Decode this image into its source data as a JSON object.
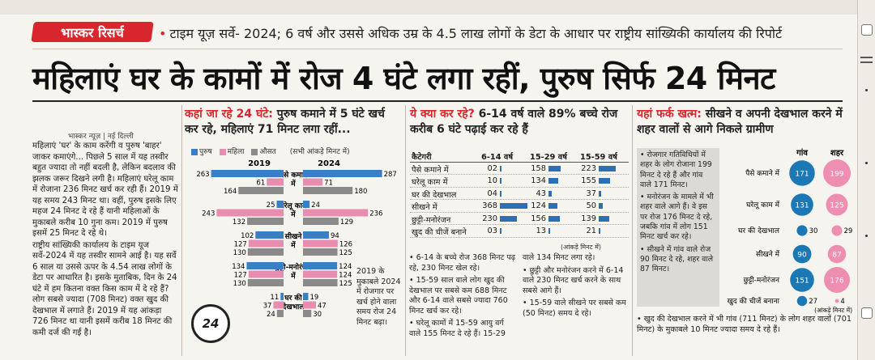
{
  "top_hint": "",
  "brand": "भास्कर रिसर्च",
  "subhead": "टाइम यूज़ सर्वे- 2024; 6 वर्ष और उससे अधिक उम्र के 4.5 लाख लोगों के डेटा के आधार पर राष्ट्रीय सांख्यिकी कार्यालय की रिपोर्ट",
  "headline": "महिलाएं घर के कामों में रोज 4 घंटे लगा रहीं, पुरुष सिर्फ 24 मिनट",
  "byline": "भास्कर न्यूज़ | नई दिल्ली",
  "left_paragraphs": [
    "महिलाएं 'घर' के काम करेंगी व पुरुष 'बाहर' जाकर कमाएंगे... पिछले 5 साल में यह तस्वीर बहुत ज्यादा तो नहीं बदली है, लेकिन बदलाव की झलक जरूर दिखने लगी है। महिलाएं घरेलू काम में रोजाना 236 मिनट खर्च कर रही हैं। 2019 में यह समय 243 मिनट था। वहीं, पुरुष इसके लिए महज 24 मिनट दे रहे हैं यानी महिलाओं के मुकाबले करीब 10 गुना कम। 2019 में पुरुष इसमें 25 मिनट दे रहे थे।",
    "राष्ट्रीय सांख्यिकी कार्यालय के टाइम यूज सर्वे-2024 में यह तस्वीर सामने आई है। यह सर्वे 6 साल या उससे ऊपर के 4.54 लाख लोगों के डेटा पर आधारित है। इसके मुताबिक, दिन के 24 घंटे में हम कितना वक्त किस काम में दे रहे हैं? लोग सबसे ज्यादा (708 मिनट) वक्त खुद की देखभाल में लगाते हैं। 2019 में यह आंकड़ा 726 मिनट था यानी इसमें करीब 18 मिनट की कमी दर्ज की गई है।"
  ],
  "section1": {
    "lead": "कहां जा रहे 24 घंटे:",
    "text": " पुरुष कमाने में 5 घंटे खर्च कर रहे, महिलाएं 71 मिनट लगा रहीं..."
  },
  "legend1": {
    "items": [
      {
        "label": "पुरुष",
        "color": "#3a7fc4"
      },
      {
        "label": "महिला",
        "color": "#e98db0"
      },
      {
        "label": "औसत",
        "color": "#8a8a8a"
      }
    ],
    "note": "(सभी आंकड़े मिनट में)"
  },
  "clock_label": "24",
  "note1": "2019 के मुकाबले 2024 में रोजगार पर खर्च होने वाला समय रोज 24 मिनट बढ़ा।",
  "chart_data": [
    {
      "type": "bar",
      "title": "कहां जा रहे 24 घंटे",
      "x_groups": [
        "2019",
        "2024"
      ],
      "categories": [
        "पैसे कमाने में",
        "घरेलू काम में",
        "सीखने में",
        "छुट्टी-मनोरंजन में",
        "घर की देखभाल"
      ],
      "series": [
        {
          "name": "पुरुष",
          "values_2019": [
            263,
            25,
            102,
            134,
            11
          ],
          "values_2024": [
            287,
            24,
            94,
            124,
            19
          ]
        },
        {
          "name": "महिला",
          "values_2019": [
            61,
            243,
            127,
            127,
            37
          ],
          "values_2024": [
            71,
            236,
            126,
            124,
            47
          ]
        },
        {
          "name": "औसत",
          "values_2019": [
            164,
            132,
            130,
            130,
            24
          ],
          "values_2024": [
            180,
            129,
            125,
            125,
            30
          ]
        }
      ],
      "unit": "(सभी आंकड़े मिनट में)",
      "colors": {
        "male": "#3a7fc4",
        "female": "#e98db0",
        "avg": "#8a8a8a"
      }
    },
    {
      "type": "table",
      "title": "ये क्या कर रहे? 6-14 वर्ष वाले 89% बच्चे रोज करीब 6 घंटे पढ़ाई कर रहे हैं",
      "columns": [
        "कैटेगरी",
        "6-14 वर्ष",
        "15-29 वर्ष",
        "15-59 वर्ष"
      ],
      "rows": [
        {
          "category": "पैसे कमाने में",
          "values": [
            2,
            158,
            223
          ],
          "labels": [
            "02",
            "158",
            "223"
          ]
        },
        {
          "category": "घरेलू काम में",
          "values": [
            10,
            134,
            155
          ],
          "labels": [
            "10",
            "134",
            "155"
          ]
        },
        {
          "category": "घर की देखभाल",
          "values": [
            4,
            43,
            37
          ],
          "labels": [
            "04",
            "43",
            "37"
          ]
        },
        {
          "category": "सीखने में",
          "values": [
            368,
            124,
            50
          ],
          "labels": [
            "368",
            "124",
            "50"
          ]
        },
        {
          "category": "छुट्टी-मनोरंजन",
          "values": [
            230,
            156,
            139
          ],
          "labels": [
            "230",
            "156",
            "139"
          ]
        },
        {
          "category": "खुद की चीजें बनाने",
          "values": [
            3,
            13,
            21
          ],
          "labels": [
            "03",
            "13",
            "21"
          ]
        }
      ],
      "unit": "(आंकड़े मिनट में)"
    },
    {
      "type": "bar",
      "title": "यहां फर्क खत्म: सीखने व अपनी देखभाल करने में शहर वालों से आगे निकले ग्रामीण",
      "columns": [
        "गांव",
        "शहर"
      ],
      "categories": [
        "पैसे कमाने में",
        "घरेलू काम में",
        "घर की देखभाल",
        "सीखने में",
        "छुट्टी-मनोरंजन",
        "खुद की चीजें बनाना"
      ],
      "series": [
        {
          "name": "गांव",
          "values": [
            171,
            131,
            30,
            90,
            151,
            27
          ]
        },
        {
          "name": "शहर",
          "values": [
            199,
            125,
            29,
            87,
            176,
            4
          ]
        }
      ],
      "unit": "(आंकड़े मिनट में)",
      "colors": {
        "village": "#1b78b5",
        "city": "#ee8fb2"
      }
    }
  ],
  "section2": {
    "lead": "ये क्या कर रहे?",
    "text": " 6-14 वर्ष वाले 89% बच्चे रोज करीब 6 घंटे पढ़ाई कर रहे हैं"
  },
  "bullets2": [
    "6-14 के बच्चे रोज 368 मिनट पढ़ रहे, 230 मिनट खेल रहे।",
    "15-59 साल वाले लोग खुद की देखभाल पर सबसे कम 688 मिनट और 6-14 वाले सबसे ज्यादा 760 मिनट खर्च कर रहे।",
    "घरेलू कामों में 15-59 आयु वर्ग वाले 155 मिनट दे रहे हैं। 15-29 वाले 134 मिनट लगा रहे।",
    "छुट्टी और मनोरंजन करने में 6-14 वाले 230 मिनट खर्च करने के साथ सबसे आगे हैं।",
    "15-59 वाले सीखने पर सबसे कम (50 मिनट) समय दे रहे।"
  ],
  "section3": {
    "lead": "यहां फर्क खत्म:",
    "text": " सीखने व अपनी देखभाल करने में शहर वालों से आगे निकले ग्रामीण"
  },
  "rbullets": [
    "रोजगार गतिविधियों में शहर के लोग रोजाना 199 मिनट दे रहे हैं और गांव वाले 171 मिनट।",
    "मनोरंजन के मामले में भी शहर वाले आगे हैं। वे इस पर रोज 176 मिनट दे रहे, जबकि गांव में लोग 151 मिनट खर्च कर रहे।",
    "सीखने में गांव वाले रोज 90 मिनट दे रहे, शहर वाले 87 मिनट।"
  ],
  "rfoot": "खुद की देखभाल करने में भी गांव (711 मिनट) के लोग शहर वालों (701 मिनट) के मुकाबले 10 मिनट ज्यादा समय दे रहे हैं।"
}
